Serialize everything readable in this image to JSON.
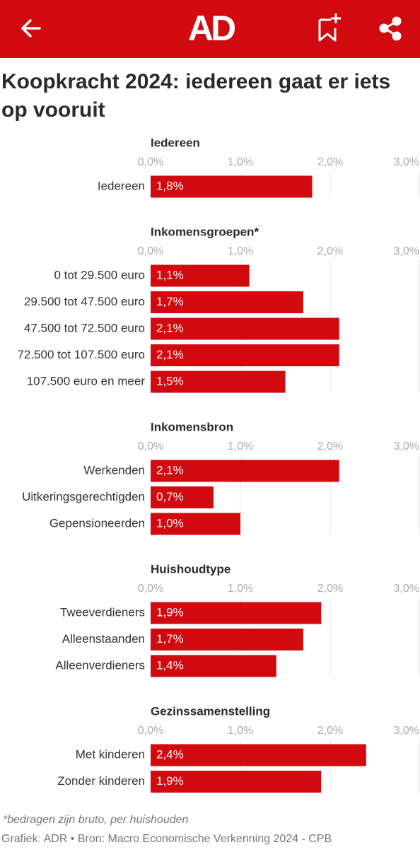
{
  "header": {
    "logo": "AD"
  },
  "title": "Koopkracht 2024: iedereen gaat er iets op vooruit",
  "chart_data": [
    {
      "type": "bar",
      "horizontal": true,
      "title": "Iedereen",
      "color": "#d10a10",
      "categories": [
        "Iedereen"
      ],
      "values": [
        1.8
      ],
      "value_labels": [
        "1,8%"
      ],
      "xlim": [
        0,
        3
      ],
      "xticks": [
        {
          "value": 0,
          "label": "0,0%"
        },
        {
          "value": 1,
          "label": "1,0%"
        },
        {
          "value": 2,
          "label": "2,0%"
        },
        {
          "value": 3,
          "label": "3,0%"
        }
      ],
      "grid": true
    },
    {
      "type": "bar",
      "horizontal": true,
      "title": "Inkomensgroepen*",
      "color": "#d10a10",
      "categories": [
        "0 tot 29.500 euro",
        "29.500 tot 47.500 euro",
        "47.500 tot 72.500 euro",
        "72.500 tot 107.500 euro",
        "107.500 euro en meer"
      ],
      "values": [
        1.1,
        1.7,
        2.1,
        2.1,
        1.5
      ],
      "value_labels": [
        "1,1%",
        "1,7%",
        "2,1%",
        "2,1%",
        "1,5%"
      ],
      "xlim": [
        0,
        3
      ],
      "xticks": [
        {
          "value": 0,
          "label": "0,0%"
        },
        {
          "value": 1,
          "label": "1,0%"
        },
        {
          "value": 2,
          "label": "2,0%"
        },
        {
          "value": 3,
          "label": "3,0%"
        }
      ],
      "grid": true
    },
    {
      "type": "bar",
      "horizontal": true,
      "title": "Inkomensbron",
      "color": "#d10a10",
      "categories": [
        "Werkenden",
        "Uitkeringsgerechtigden",
        "Gepensioneerden"
      ],
      "values": [
        2.1,
        0.7,
        1.0
      ],
      "value_labels": [
        "2,1%",
        "0,7%",
        "1,0%"
      ],
      "xlim": [
        0,
        3
      ],
      "xticks": [
        {
          "value": 0,
          "label": "0,0%"
        },
        {
          "value": 1,
          "label": "1,0%"
        },
        {
          "value": 2,
          "label": "2,0%"
        },
        {
          "value": 3,
          "label": "3,0%"
        }
      ],
      "grid": true
    },
    {
      "type": "bar",
      "horizontal": true,
      "title": "Huishoudtype",
      "color": "#d10a10",
      "categories": [
        "Tweeverdieners",
        "Alleenstaanden",
        "Alleenverdieners"
      ],
      "values": [
        1.9,
        1.7,
        1.4
      ],
      "value_labels": [
        "1,9%",
        "1,7%",
        "1,4%"
      ],
      "xlim": [
        0,
        3
      ],
      "xticks": [
        {
          "value": 0,
          "label": "0,0%"
        },
        {
          "value": 1,
          "label": "1,0%"
        },
        {
          "value": 2,
          "label": "2,0%"
        },
        {
          "value": 3,
          "label": "3,0%"
        }
      ],
      "grid": true
    },
    {
      "type": "bar",
      "horizontal": true,
      "title": "Gezinssamenstelling",
      "color": "#d10a10",
      "categories": [
        "Met kinderen",
        "Zonder kinderen"
      ],
      "values": [
        2.4,
        1.9
      ],
      "value_labels": [
        "2,4%",
        "1,9%"
      ],
      "xlim": [
        0,
        3
      ],
      "xticks": [
        {
          "value": 0,
          "label": "0,0%"
        },
        {
          "value": 1,
          "label": "1,0%"
        },
        {
          "value": 2,
          "label": "2,0%"
        },
        {
          "value": 3,
          "label": "3,0%"
        }
      ],
      "grid": true
    }
  ],
  "footnote": "*bedragen zijn bruto, per huishouden",
  "source": "Grafiek: ADR • Bron: Macro Economische Verkenning 2024 - CPB"
}
